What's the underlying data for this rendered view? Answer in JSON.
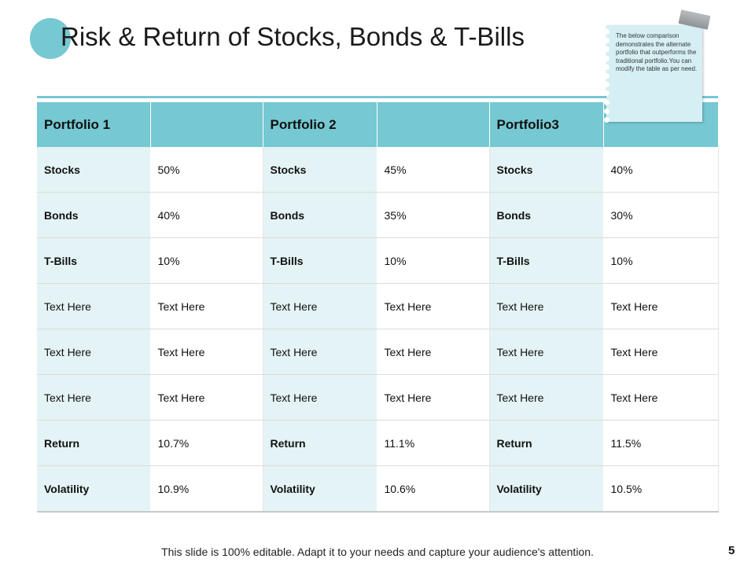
{
  "title": "Risk & Return of Stocks, Bonds & T-Bills",
  "note": {
    "text": "The below comparison demonstrates the alternate portfolio that outperforms the traditional portfolio.You can modify the table as per need."
  },
  "table": {
    "headers": [
      "Portfolio 1",
      "",
      "Portfolio 2",
      "",
      "Portfolio3",
      ""
    ],
    "rows": [
      {
        "bold": true,
        "cells": [
          "Stocks",
          "50%",
          "Stocks",
          "45%",
          "Stocks",
          "40%"
        ]
      },
      {
        "bold": true,
        "cells": [
          "Bonds",
          "40%",
          "Bonds",
          "35%",
          "Bonds",
          "30%"
        ]
      },
      {
        "bold": true,
        "cells": [
          "T-Bills",
          "10%",
          "T-Bills",
          "10%",
          "T-Bills",
          "10%"
        ]
      },
      {
        "bold": false,
        "cells": [
          "Text Here",
          "Text Here",
          "Text Here",
          "Text Here",
          "Text Here",
          "Text Here"
        ]
      },
      {
        "bold": false,
        "cells": [
          "Text Here",
          "Text Here",
          "Text Here",
          "Text Here",
          "Text Here",
          "Text Here"
        ]
      },
      {
        "bold": false,
        "cells": [
          "Text Here",
          "Text Here",
          "Text Here",
          "Text Here",
          "Text Here",
          "Text Here"
        ]
      },
      {
        "bold": true,
        "cells": [
          "Return",
          "10.7%",
          "Return",
          "11.1%",
          "Return",
          "11.5%"
        ]
      },
      {
        "bold": true,
        "cells": [
          "Volatility",
          "10.9%",
          "Volatility",
          "10.6%",
          "Volatility",
          "10.5%"
        ]
      }
    ]
  },
  "footer": {
    "text": "This slide is 100% editable. Adapt it to your needs and capture your audience's attention.",
    "page_number": "5"
  },
  "colors": {
    "accent": "#76C8D2",
    "label_fill": "#E4F3F5",
    "note_fill": "#D5EFF4"
  }
}
